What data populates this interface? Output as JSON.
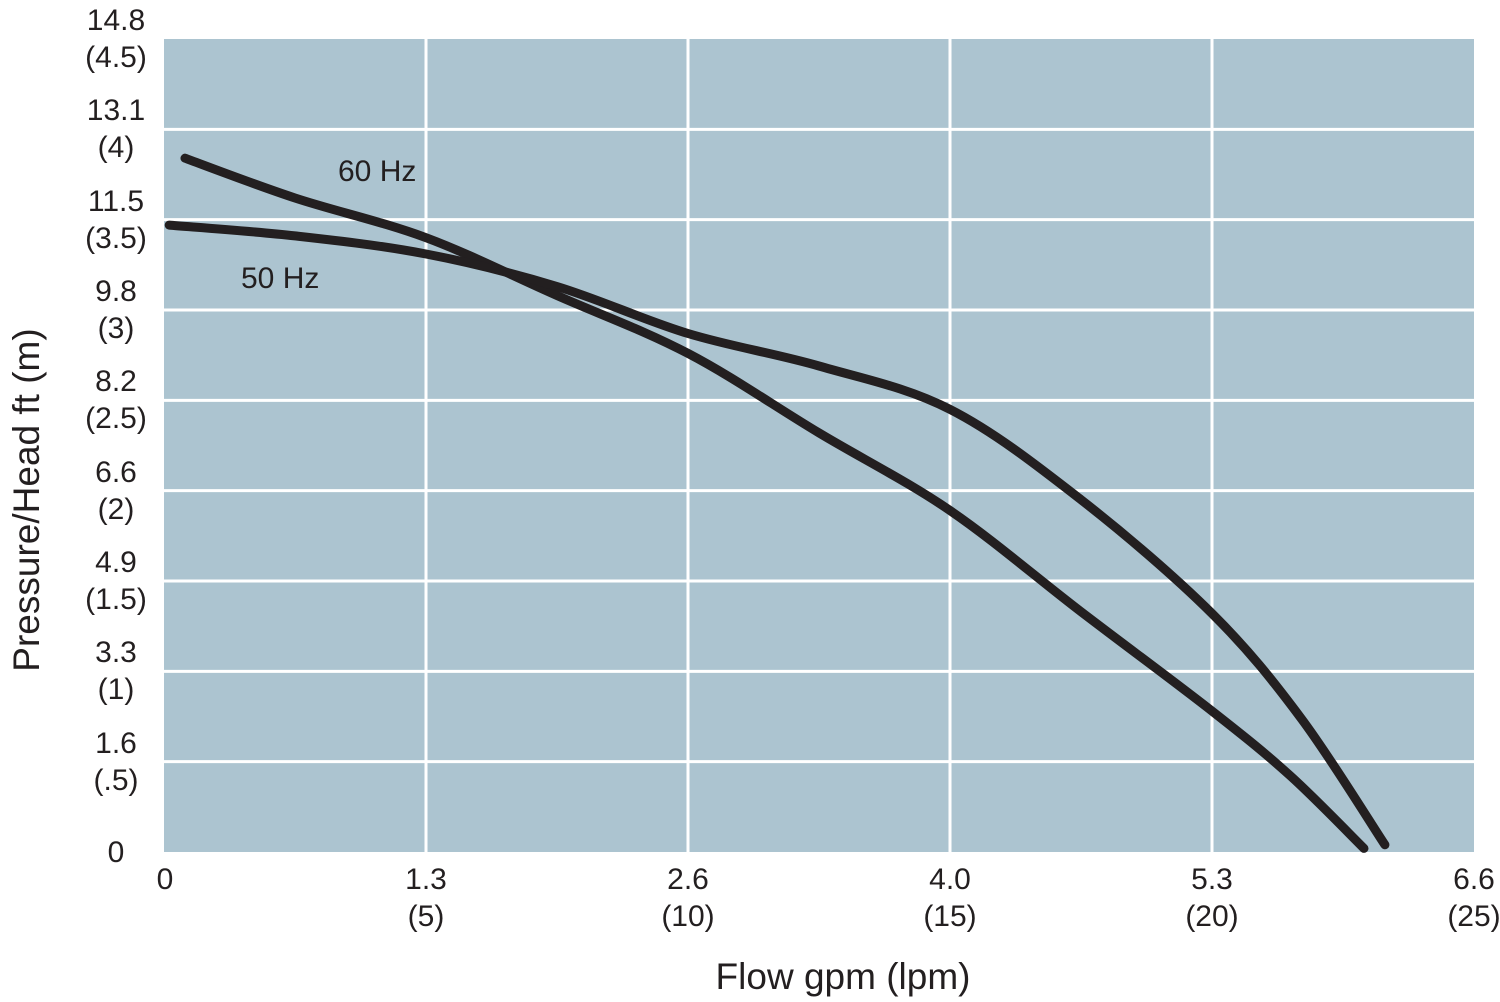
{
  "chart_data": {
    "type": "line",
    "title": "",
    "xlabel": "Flow gpm (lpm)",
    "ylabel": "Pressure/Head ft (m)",
    "x_range_lpm": [
      0,
      25
    ],
    "y_range_m": [
      0,
      4.5
    ],
    "grid": true,
    "legend_position": "inline-curve-labels",
    "x_ticks": [
      {
        "gpm": "0",
        "lpm_label": "",
        "lpm": 0
      },
      {
        "gpm": "1.3",
        "lpm_label": "(5)",
        "lpm": 5
      },
      {
        "gpm": "2.6",
        "lpm_label": "(10)",
        "lpm": 10
      },
      {
        "gpm": "4.0",
        "lpm_label": "(15)",
        "lpm": 15
      },
      {
        "gpm": "5.3",
        "lpm_label": "(20)",
        "lpm": 20
      },
      {
        "gpm": "6.6",
        "lpm_label": "(25)",
        "lpm": 25
      }
    ],
    "y_ticks": [
      {
        "ft": "14.8",
        "m_label": "(4.5)",
        "m": 4.5
      },
      {
        "ft": "13.1",
        "m_label": "(4)",
        "m": 4
      },
      {
        "ft": "11.5",
        "m_label": "(3.5)",
        "m": 3.5
      },
      {
        "ft": "9.8",
        "m_label": "(3)",
        "m": 3
      },
      {
        "ft": "8.2",
        "m_label": "(2.5)",
        "m": 2.5
      },
      {
        "ft": "6.6",
        "m_label": "(2)",
        "m": 2
      },
      {
        "ft": "4.9",
        "m_label": "(1.5)",
        "m": 1.5
      },
      {
        "ft": "3.3",
        "m_label": "(1)",
        "m": 1
      },
      {
        "ft": "1.6",
        "m_label": "(.5)",
        "m": 0.5
      },
      {
        "ft": "0",
        "m_label": "",
        "m": 0
      }
    ],
    "series": [
      {
        "name": "60 Hz",
        "points_lpm_m": [
          [
            0.4,
            3.84
          ],
          [
            2.5,
            3.62
          ],
          [
            5,
            3.4
          ],
          [
            7.5,
            3.08
          ],
          [
            10,
            2.76
          ],
          [
            12.5,
            2.32
          ],
          [
            15,
            1.89
          ],
          [
            17.5,
            1.33
          ],
          [
            20,
            0.78
          ],
          [
            21.5,
            0.42
          ],
          [
            22.9,
            0.02
          ]
        ]
      },
      {
        "name": "50 Hz",
        "points_lpm_m": [
          [
            0.1,
            3.47
          ],
          [
            2.5,
            3.41
          ],
          [
            5,
            3.31
          ],
          [
            7.5,
            3.13
          ],
          [
            10,
            2.87
          ],
          [
            12.5,
            2.69
          ],
          [
            15,
            2.45
          ],
          [
            17.5,
            1.95
          ],
          [
            20,
            1.32
          ],
          [
            21.7,
            0.74
          ],
          [
            23.3,
            0.04
          ]
        ]
      }
    ],
    "colors": {
      "plot_bg": "#acc4d0",
      "grid": "#ffffff",
      "curve": "#231f20",
      "text": "#231f20"
    }
  }
}
